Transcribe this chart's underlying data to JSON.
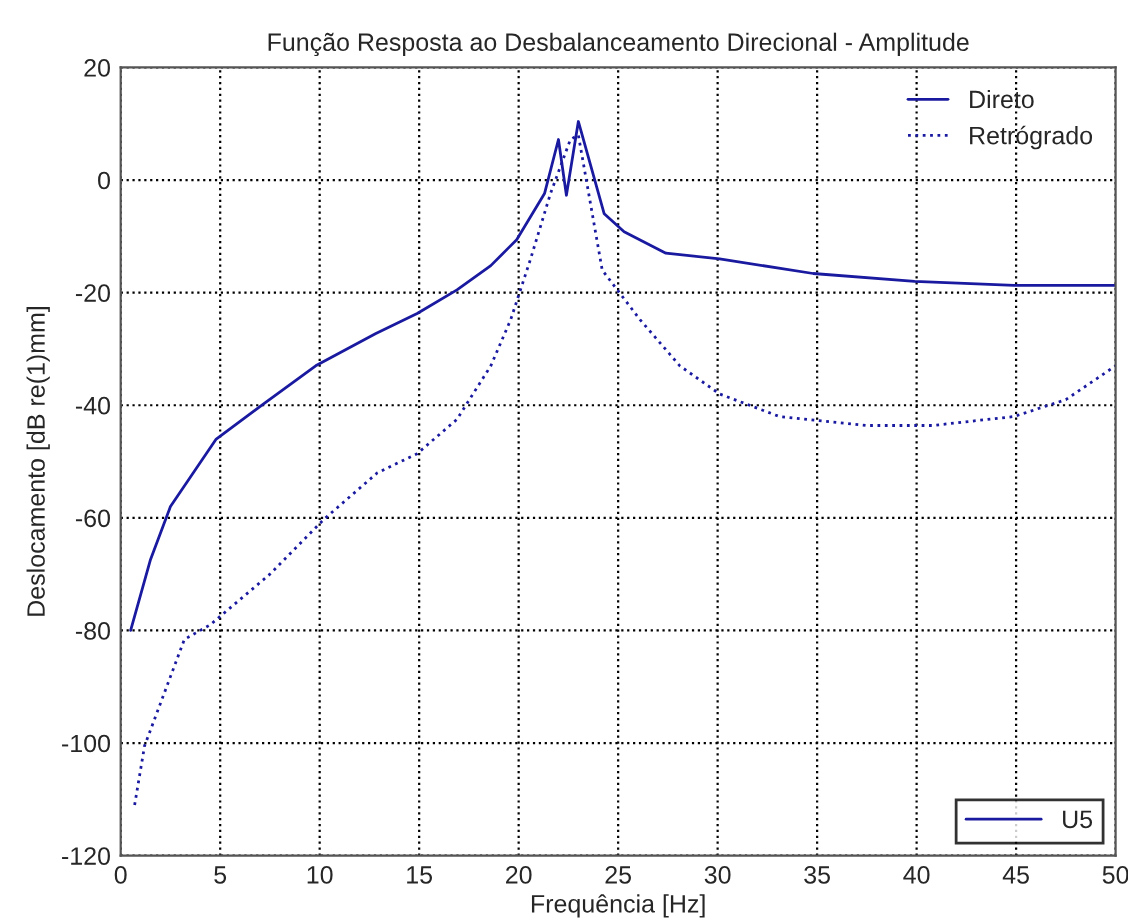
{
  "chart_data": {
    "type": "line",
    "title": "Função Resposta ao Desbalanceamento Direcional - Amplitude",
    "xlabel": "Frequência [Hz]",
    "ylabel": "Deslocamento [dB re(1)mm]",
    "xlim": [
      0,
      50
    ],
    "xticks": [
      0,
      5,
      10,
      15,
      20,
      25,
      30,
      35,
      40,
      45,
      50
    ],
    "ylim": [
      -120,
      20
    ],
    "yticks": [
      -120,
      -100,
      -80,
      -60,
      -40,
      -20,
      0,
      20
    ],
    "grid": true,
    "legend": "top right",
    "annotations": [
      "U5"
    ],
    "series": [
      {
        "name": "Direto",
        "color": "#1a1aa0",
        "line_style": "solid",
        "x": [
          0.5,
          1.5,
          2.5,
          4.8,
          7.2,
          9.8,
          12.8,
          14.9,
          16.9,
          18.6,
          19.9,
          21.3,
          22.0,
          22.4,
          23.0,
          24.3,
          25.3,
          27.4,
          30.1,
          34.8,
          39.9,
          44.9,
          50
        ],
        "values": [
          -80,
          -67.4,
          -58,
          -46,
          -39.7,
          -33,
          -27.3,
          -23.7,
          -19.5,
          -15.2,
          -10.6,
          -2.4,
          7.2,
          -2.7,
          10.4,
          -6,
          -9.2,
          -13,
          -14,
          -16.6,
          -18,
          -18.7,
          -18.7
        ]
      },
      {
        "name": "Retrógrado",
        "color": "#1a1aa0",
        "line_style": "dotted",
        "x": [
          0.7,
          1.2,
          3.2,
          4.5,
          7.5,
          10.2,
          12.9,
          14.9,
          16.9,
          18.6,
          19.6,
          20.6,
          21.6,
          22.6,
          23.0,
          24.2,
          26.1,
          28.1,
          30.1,
          33.1,
          37.5,
          40.8,
          44.9,
          47.5,
          50
        ],
        "values": [
          -111,
          -100.5,
          -81.6,
          -79,
          -70,
          -60.3,
          -52,
          -48.6,
          -42.5,
          -33,
          -24.8,
          -14,
          -2.4,
          7.2,
          8,
          -16,
          -24.8,
          -33,
          -38,
          -42,
          -43.6,
          -43.6,
          -42,
          -39,
          -33
        ]
      }
    ]
  }
}
